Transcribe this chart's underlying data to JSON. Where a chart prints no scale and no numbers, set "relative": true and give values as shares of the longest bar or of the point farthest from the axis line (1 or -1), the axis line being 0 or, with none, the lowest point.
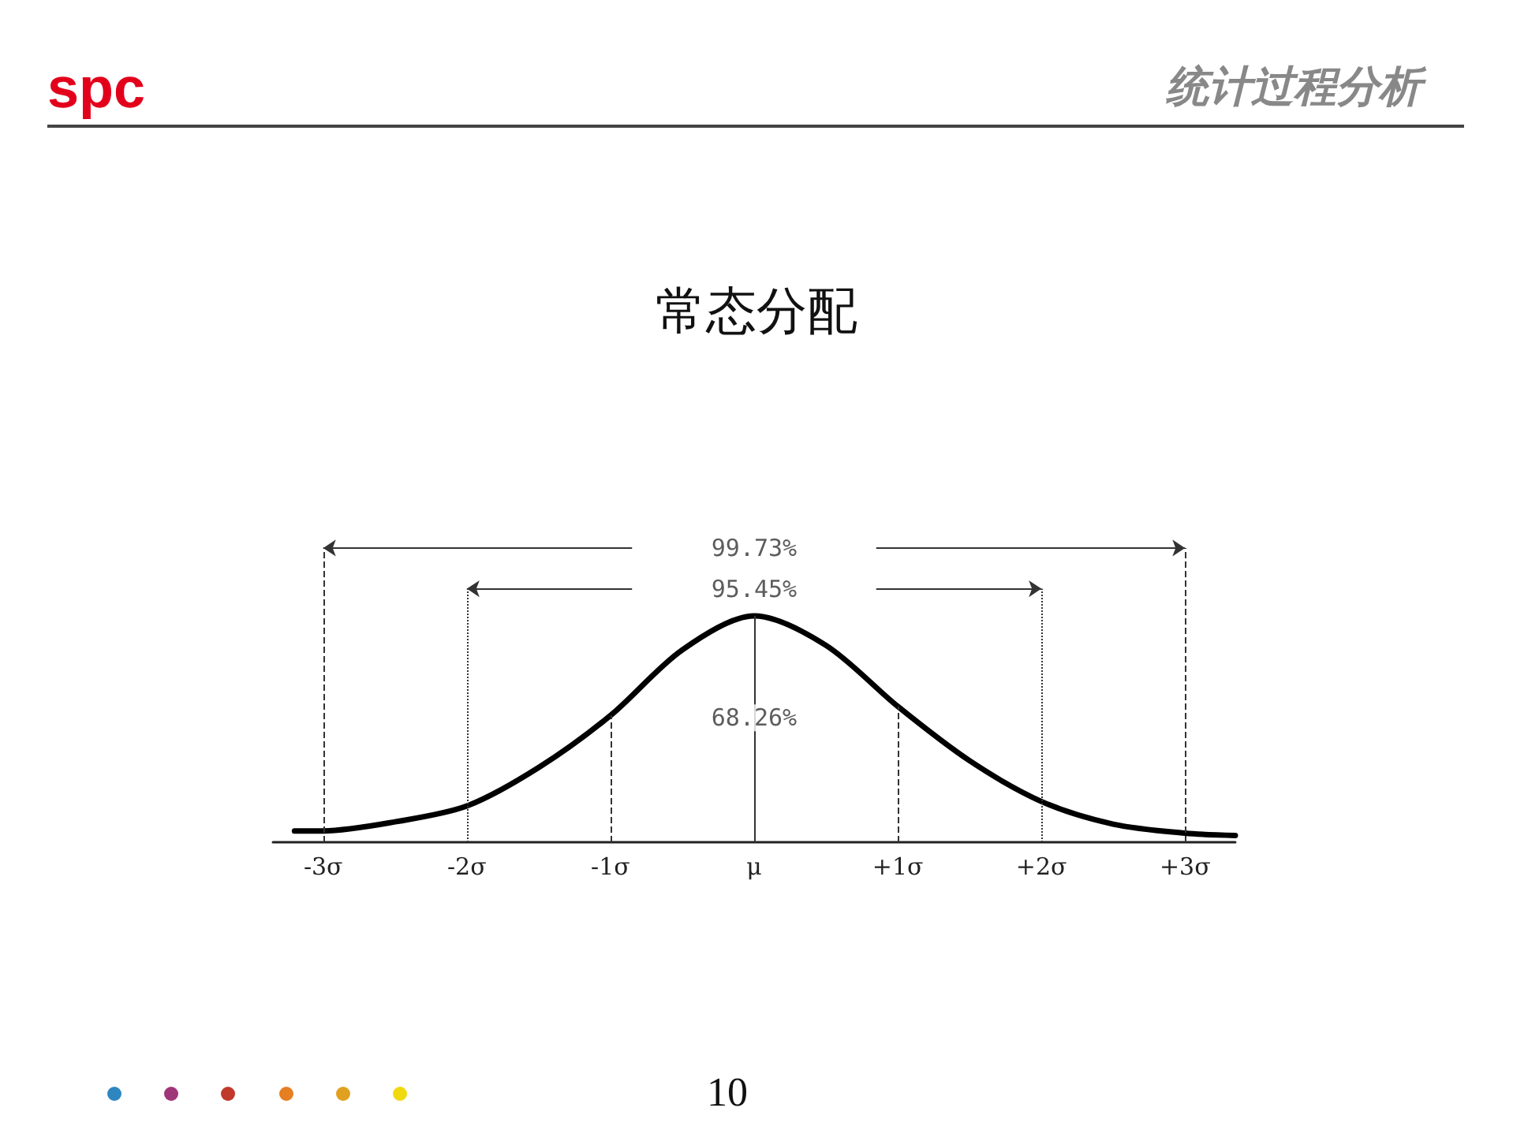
{
  "chart_data": {
    "type": "line",
    "title": "常态分配",
    "relative": true,
    "color": "#000000",
    "marker": "none",
    "line_style": "solid",
    "grid": false,
    "tick_labels": "x",
    "x": [
      -3.2,
      -3,
      -2.5,
      -2,
      -1.5,
      -1,
      -0.5,
      0,
      0.5,
      1,
      1.5,
      2,
      2.5,
      3,
      3.35
    ],
    "values": [
      0.05,
      0.05,
      0.09,
      0.16,
      0.33,
      0.56,
      0.85,
      1,
      0.87,
      0.6,
      0.36,
      0.18,
      0.08,
      0.04,
      0.03
    ],
    "xlim": [
      -3.35,
      3.35
    ],
    "xticks": [
      {
        "value": -3,
        "label": "-3σ"
      },
      {
        "value": -2,
        "label": "-2σ"
      },
      {
        "value": -1,
        "label": "-1σ"
      },
      {
        "value": 0,
        "label": "μ"
      },
      {
        "value": 1,
        "label": "+1σ"
      },
      {
        "value": 2,
        "label": "+2σ"
      },
      {
        "value": 3,
        "label": "+3σ"
      }
    ],
    "ref_lines": [
      {
        "axis": "x",
        "value": -3,
        "line_style": "dashed"
      },
      {
        "axis": "x",
        "value": -2,
        "line_style": "dotted"
      },
      {
        "axis": "x",
        "value": -1,
        "line_style": "dashed"
      },
      {
        "axis": "x",
        "value": 0,
        "line_style": "solid"
      },
      {
        "axis": "x",
        "value": 1,
        "line_style": "dashed"
      },
      {
        "axis": "x",
        "value": 2,
        "line_style": "dotted"
      },
      {
        "axis": "x",
        "value": 3,
        "line_style": "dashed"
      }
    ],
    "annotations": [
      "spc",
      "统计过程分析",
      "99.73%",
      "95.45%",
      {
        "text": "68.26%",
        "x": 0,
        "y": 0.55
      },
      "10"
    ]
  }
}
